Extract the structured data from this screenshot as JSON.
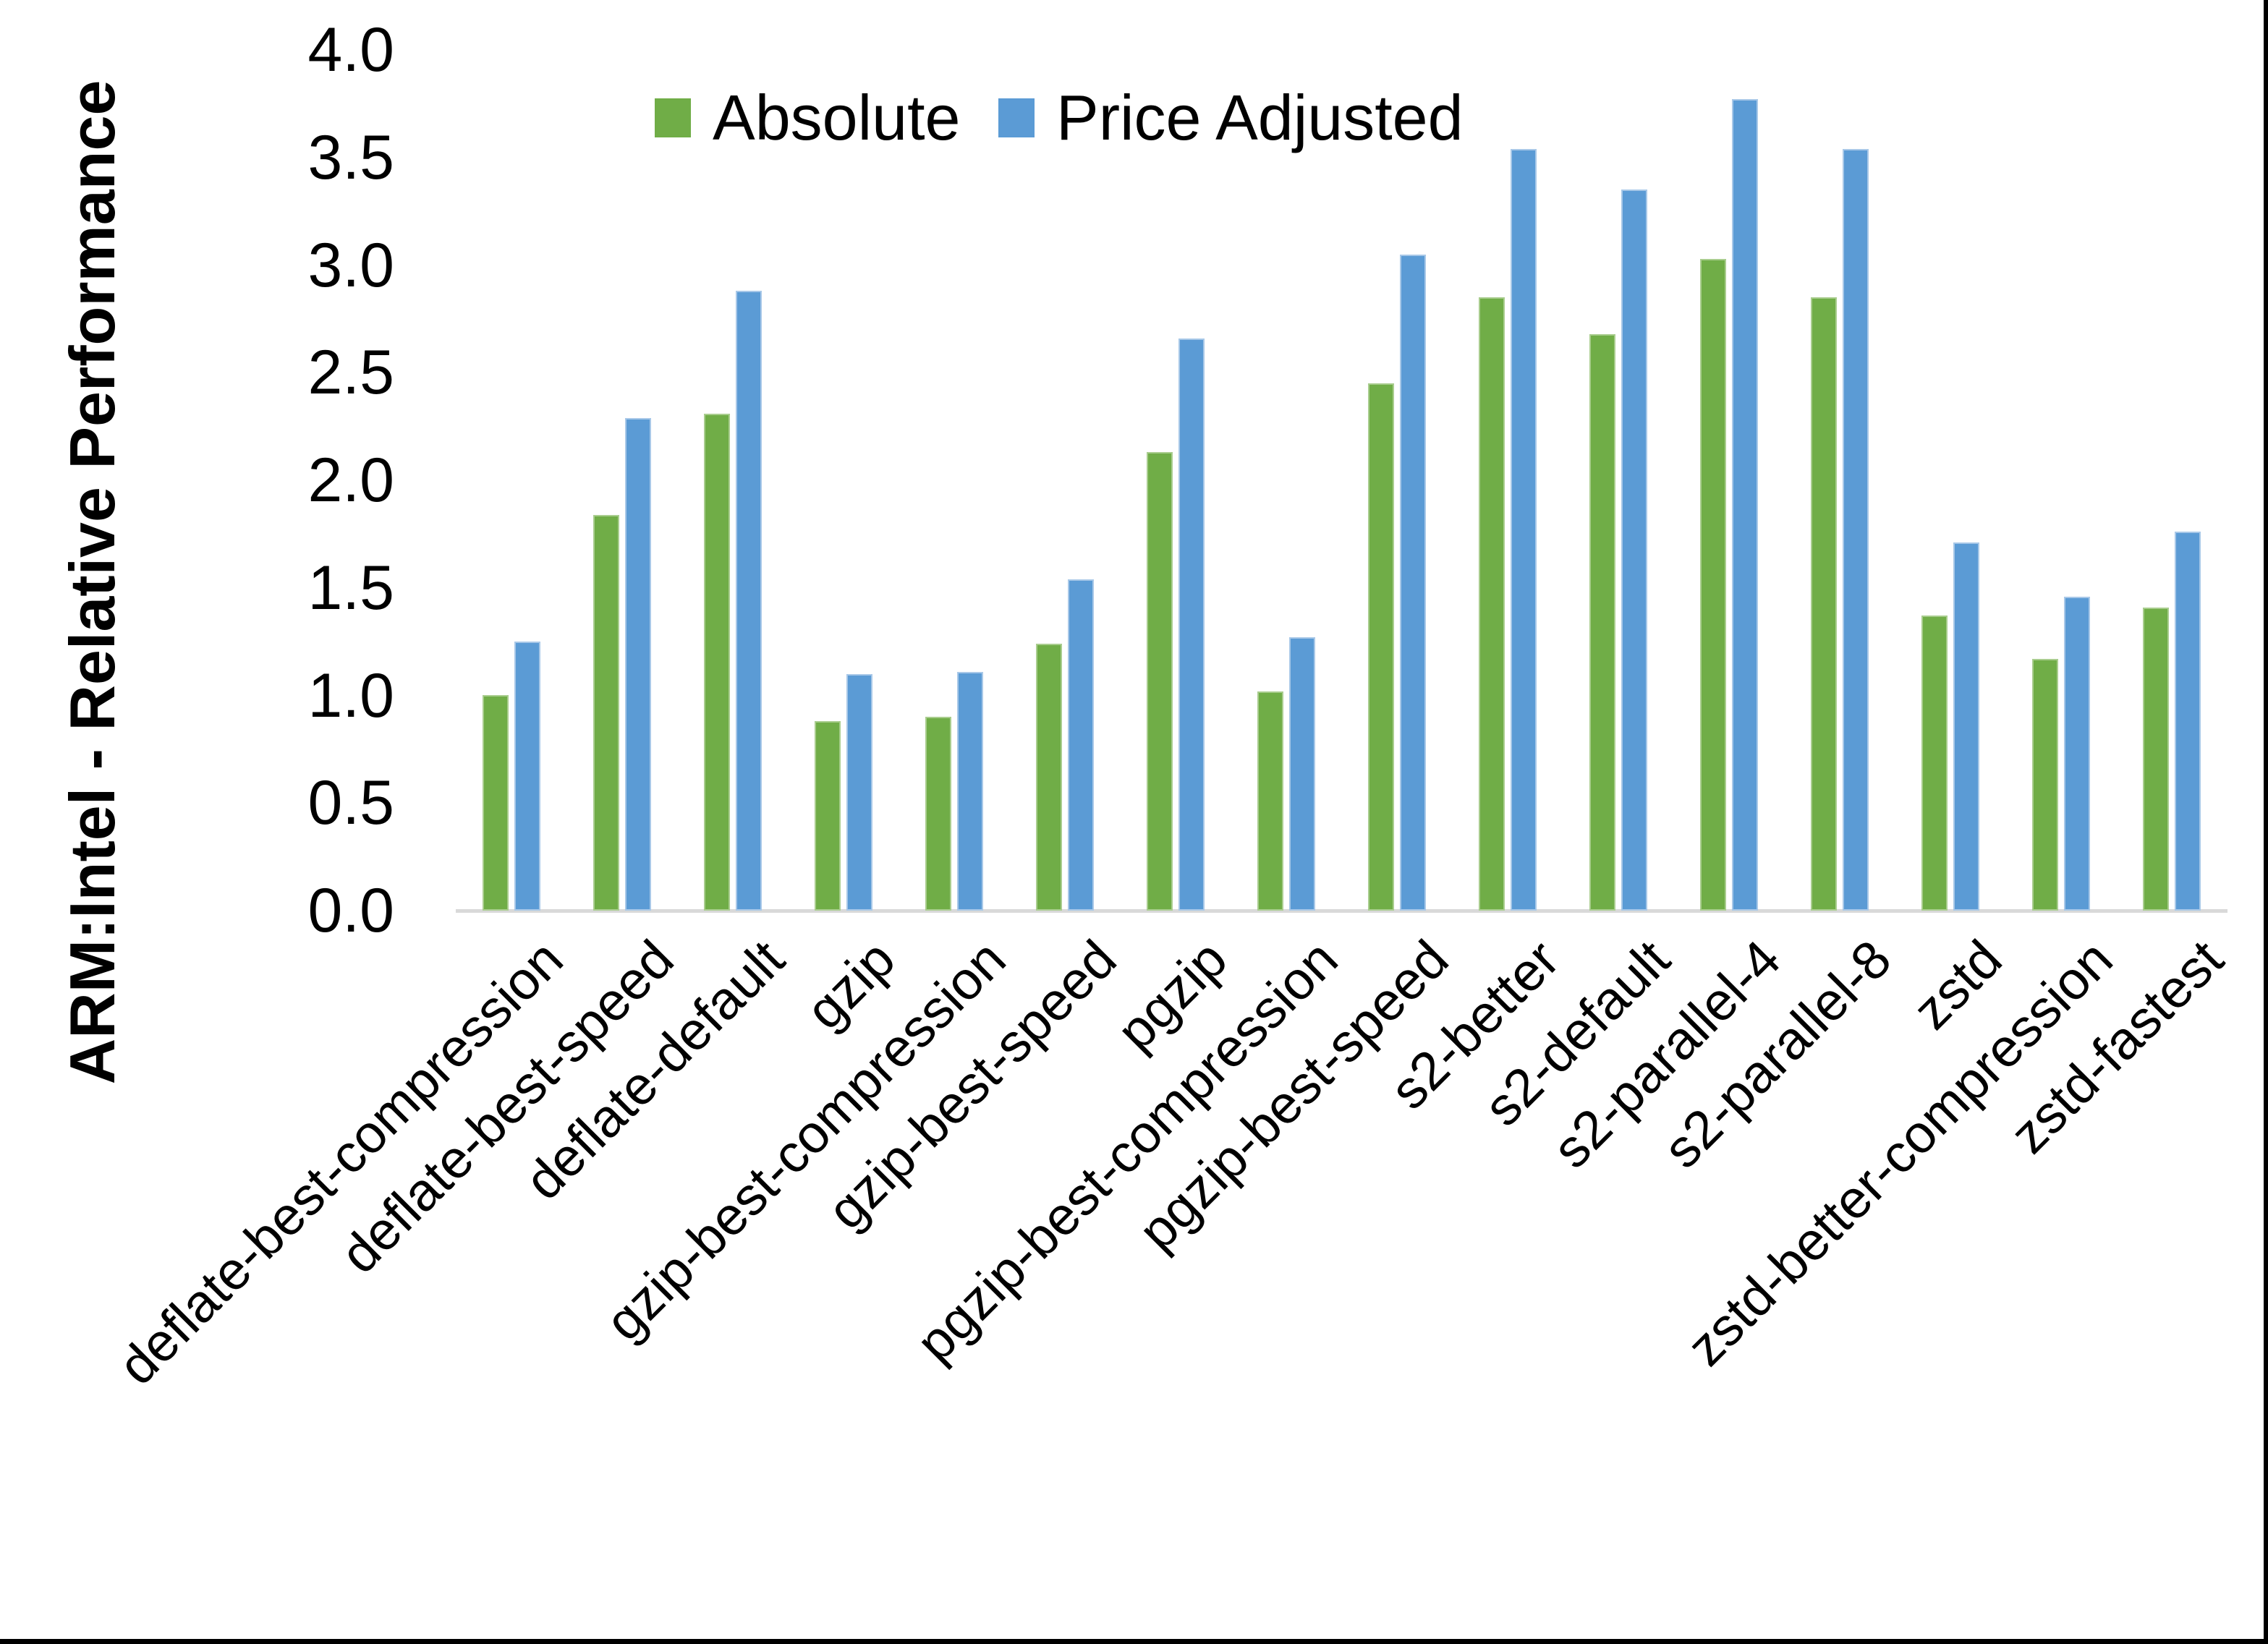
{
  "chart_data": {
    "type": "bar",
    "title": "",
    "xlabel": "",
    "ylabel": "ARM:Intel - Relative Performance",
    "ylim": [
      0.0,
      4.0
    ],
    "ytick_step": 0.5,
    "yticks": [
      "0.0",
      "0.5",
      "1.0",
      "1.5",
      "2.0",
      "2.5",
      "3.0",
      "3.5",
      "4.0"
    ],
    "grid": false,
    "legend_position": "top-center",
    "background_color": "#ffffff",
    "text_color": "#000000",
    "axis_line_color": "#d9d9d9",
    "categories": [
      "deflate-best-compression",
      "deflate-best-speed",
      "deflate-default",
      "gzip",
      "gzip-best-compression",
      "gzip-best-speed",
      "pgzip",
      "pgzip-best-compression",
      "pgzip-best-speed",
      "s2-better",
      "s2-default",
      "s2-parallel-4",
      "s2-parallel-8",
      "zstd",
      "zstd-better-compression",
      "zstd-fastest"
    ],
    "series": [
      {
        "name": "Absolute",
        "color": "#70AD47",
        "border_color": "#a9cd8e",
        "values": [
          1.0,
          1.84,
          2.31,
          0.88,
          0.9,
          1.24,
          2.13,
          1.02,
          2.45,
          2.85,
          2.68,
          3.03,
          2.85,
          1.37,
          1.17,
          1.41
        ]
      },
      {
        "name": "Price Adjusted",
        "color": "#5B9BD5",
        "border_color": "#a8c8e8",
        "values": [
          1.25,
          2.29,
          2.88,
          1.1,
          1.11,
          1.54,
          2.66,
          1.27,
          3.05,
          3.54,
          3.35,
          3.77,
          3.54,
          1.71,
          1.46,
          1.76
        ]
      }
    ]
  },
  "frame": {
    "right_edge_color": "#000000",
    "bottom_edge_color": "#000000"
  }
}
